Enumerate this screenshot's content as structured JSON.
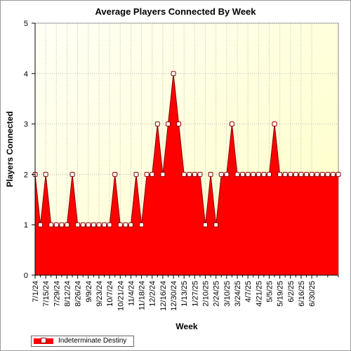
{
  "chart_data": {
    "type": "area",
    "title": "Average Players Connected By Week",
    "xlabel": "Week",
    "ylabel": "Players Connected",
    "ylim": [
      0,
      5
    ],
    "yticks": [
      0,
      1,
      2,
      3,
      4,
      5
    ],
    "x_tick_labels": [
      "7/1/24",
      "7/15/24",
      "7/29/24",
      "8/12/24",
      "8/26/24",
      "9/9/24",
      "9/23/24",
      "10/7/24",
      "10/21/24",
      "11/4/24",
      "11/18/24",
      "12/2/24",
      "12/16/24",
      "12/30/24",
      "1/13/25",
      "1/27/25",
      "2/10/25",
      "2/24/25",
      "3/10/25",
      "3/24/25",
      "4/7/25",
      "4/21/25",
      "5/5/25",
      "5/19/25",
      "6/2/25",
      "6/16/25",
      "6/30/25"
    ],
    "grid": true,
    "legend_position": "bottom-left",
    "series": [
      {
        "name": "Indeterminate Destiny",
        "color": "#ff0000",
        "values": [
          2,
          1,
          2,
          1,
          1,
          1,
          1,
          2,
          1,
          1,
          1,
          1,
          1,
          1,
          1,
          2,
          1,
          1,
          1,
          2,
          1,
          2,
          2,
          3,
          2,
          3,
          4,
          3,
          2,
          2,
          2,
          2,
          1,
          2,
          1,
          2,
          2,
          3,
          2,
          2,
          2,
          2,
          2,
          2,
          2,
          3,
          2,
          2,
          2,
          2,
          2,
          2,
          2,
          2,
          2,
          2,
          2,
          2
        ]
      }
    ]
  },
  "colors": {
    "plot_background_top": "#fffff0",
    "plot_background_bottom": "#ffffc8",
    "area_fill": "#ff0000",
    "area_stroke": "#8b0000"
  }
}
